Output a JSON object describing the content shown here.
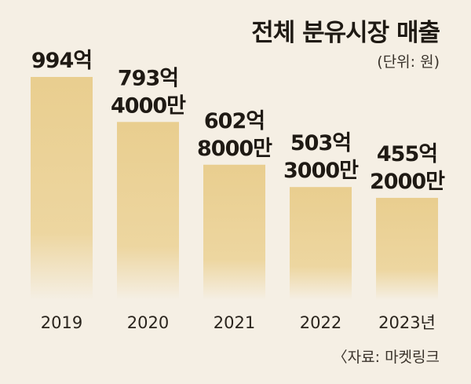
{
  "title": "전체 분유시장 매출",
  "unit_note": "(단위: 원)",
  "source_note": "〈자료: 마켓링크",
  "chart_data": {
    "type": "bar",
    "title": "전체 분유시장 매출",
    "categories": [
      "2019",
      "2020",
      "2021",
      "2022",
      "2023년"
    ],
    "values": [
      99400000000,
      79340000000,
      60280000000,
      50330000000,
      45520000000
    ],
    "data_labels": [
      [
        "994억"
      ],
      [
        "793억",
        "4000만"
      ],
      [
        "602억",
        "8000만"
      ],
      [
        "503억",
        "3000만"
      ],
      [
        "455억",
        "2000만"
      ]
    ],
    "xlabel": "",
    "ylabel": "",
    "unit": "원",
    "ylim": [
      0,
      99400000000
    ],
    "grid": false,
    "legend": "none",
    "colors": {
      "background": "#f5efe4",
      "bar_top": "#e9ce8f",
      "bar_bottom": "#f5efe4",
      "text": "#1f1a14"
    }
  }
}
